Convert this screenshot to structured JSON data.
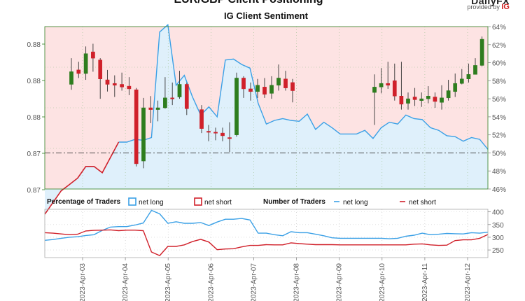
{
  "header": {
    "title": "EUR/GBP Client Positioning",
    "subtitle": "IG Client Sentiment",
    "brand": "DailyFX",
    "brand_provided": "provided by",
    "brand_ig": "IG"
  },
  "legend": {
    "pct_title": "Percentage of Traders",
    "net_long": "net long",
    "net_short": "net short",
    "num_title": "Number of Traders",
    "num_net_long": "net long",
    "num_net_short": "net short"
  },
  "colors": {
    "long": "#3aa0e6",
    "short": "#d0202a",
    "up_candle": "#2e7d1e",
    "down_candle": "#d0202a",
    "bg_short": "#fde3e3",
    "bg_long": "#dff0fb"
  },
  "chart_data": [
    {
      "type": "candlestick",
      "title": "IG Client Sentiment",
      "left_axis_ticks": [
        "0.88",
        "0.88",
        "0.88",
        "0.87",
        "0.87"
      ],
      "right_axis_ticks": [
        "64%",
        "62%",
        "60%",
        "58%",
        "56%",
        "54%",
        "52%",
        "50%",
        "48%",
        "46%"
      ],
      "ylim_right": [
        46,
        64
      ],
      "reference_line": 50,
      "net_long_percent": [
        43.2,
        44.5,
        45.8,
        46.5,
        47.2,
        48.5,
        48.5,
        47.8,
        49.5,
        51.2,
        51.2,
        51.5,
        51.4,
        51.7,
        63.4,
        64.2,
        57.5,
        58.6,
        56.2,
        54.2,
        55.1,
        54.0,
        60.3,
        60.4,
        59.8,
        59.4,
        55.5,
        53.2,
        53.6,
        53.8,
        53.6,
        53.5,
        54.3,
        52.6,
        53.4,
        52.8,
        52.1,
        52.1,
        52.1,
        52.5,
        51.6,
        52.8,
        53.4,
        53.2,
        54.2,
        53.8,
        53.7,
        52.8,
        52.5,
        51.9,
        51.8,
        51.3,
        51.7,
        51.5,
        50.4
      ],
      "candles": [
        {
          "o": 57.6,
          "c": 59.0,
          "h": 60.5,
          "l": 57.0
        },
        {
          "o": 59.2,
          "c": 58.8,
          "h": 60.1,
          "l": 58.3
        },
        {
          "o": 58.8,
          "c": 61.0,
          "h": 61.8,
          "l": 58.1
        },
        {
          "o": 61.2,
          "c": 60.5,
          "h": 62.1,
          "l": 59.0
        },
        {
          "o": 60.3,
          "c": 58.2,
          "h": 60.5,
          "l": 56.0
        },
        {
          "o": 58.1,
          "c": 57.6,
          "h": 59.2,
          "l": 56.8
        },
        {
          "o": 57.7,
          "c": 57.5,
          "h": 58.6,
          "l": 56.2
        },
        {
          "o": 57.6,
          "c": 57.3,
          "h": 58.9,
          "l": 56.9
        },
        {
          "o": 57.4,
          "c": 57.1,
          "h": 58.4,
          "l": 56.4
        },
        {
          "o": 57.0,
          "c": 48.8,
          "h": 57.2,
          "l": 48.5
        },
        {
          "o": 49.1,
          "c": 55.0,
          "h": 56.1,
          "l": 48.3
        },
        {
          "o": 55.0,
          "c": 54.8,
          "h": 56.3,
          "l": 53.3
        },
        {
          "o": 54.8,
          "c": 55.0,
          "h": 55.8,
          "l": 53.5
        },
        {
          "o": 55.0,
          "c": 56.1,
          "h": 58.4,
          "l": 54.9
        },
        {
          "o": 56.1,
          "c": 56.0,
          "h": 57.8,
          "l": 55.3
        },
        {
          "o": 56.2,
          "c": 57.6,
          "h": 59.1,
          "l": 56.0
        },
        {
          "o": 57.6,
          "c": 54.9,
          "h": 57.8,
          "l": 54.2
        },
        {
          "o": 54.8,
          "c": 52.7,
          "h": 55.3,
          "l": 52.2
        },
        {
          "o": 52.4,
          "c": 52.3,
          "h": 53.1,
          "l": 51.3
        },
        {
          "o": 52.3,
          "c": 52.2,
          "h": 52.8,
          "l": 51.4
        },
        {
          "o": 52.2,
          "c": 51.9,
          "h": 52.8,
          "l": 51.3
        },
        {
          "o": 51.7,
          "c": 51.6,
          "h": 53.4,
          "l": 50.1
        },
        {
          "o": 52.0,
          "c": 58.3,
          "h": 58.9,
          "l": 51.8
        },
        {
          "o": 58.3,
          "c": 57.1,
          "h": 58.5,
          "l": 56.1
        },
        {
          "o": 57.1,
          "c": 56.8,
          "h": 57.8,
          "l": 55.8
        },
        {
          "o": 56.8,
          "c": 57.5,
          "h": 58.2,
          "l": 56.1
        },
        {
          "o": 57.3,
          "c": 56.5,
          "h": 58.3,
          "l": 56.1
        },
        {
          "o": 56.6,
          "c": 57.5,
          "h": 58.5,
          "l": 56.0
        },
        {
          "o": 57.5,
          "c": 58.3,
          "h": 59.8,
          "l": 56.9
        },
        {
          "o": 58.2,
          "c": 57.2,
          "h": 59.1,
          "l": 56.9
        },
        {
          "o": 57.8,
          "c": 56.9,
          "h": 58.2,
          "l": 55.6
        },
        {
          "o": 56.7,
          "c": 57.3,
          "h": 58.7,
          "l": 53.1
        },
        {
          "o": 57.3,
          "c": 57.7,
          "h": 59.4,
          "l": 56.6
        },
        {
          "o": 57.7,
          "c": 57.5,
          "h": 60.1,
          "l": 57.1
        },
        {
          "o": 58.0,
          "c": 56.3,
          "h": 59.9,
          "l": 55.8
        },
        {
          "o": 56.3,
          "c": 55.4,
          "h": 60.1,
          "l": 54.8
        },
        {
          "o": 55.5,
          "c": 56.0,
          "h": 56.7,
          "l": 54.8
        },
        {
          "o": 56.2,
          "c": 55.9,
          "h": 57.2,
          "l": 55.2
        },
        {
          "o": 55.8,
          "c": 56.0,
          "h": 56.7,
          "l": 55.1
        },
        {
          "o": 56.0,
          "c": 56.3,
          "h": 57.4,
          "l": 55.5
        },
        {
          "o": 56.2,
          "c": 55.7,
          "h": 56.7,
          "l": 55.0
        },
        {
          "o": 55.6,
          "c": 56.1,
          "h": 57.5,
          "l": 54.8
        },
        {
          "o": 56.1,
          "c": 56.9,
          "h": 58.1,
          "l": 55.8
        },
        {
          "o": 56.8,
          "c": 57.7,
          "h": 58.8,
          "l": 56.2
        },
        {
          "o": 57.7,
          "c": 58.2,
          "h": 59.3,
          "l": 57.6
        },
        {
          "o": 58.2,
          "c": 58.7,
          "h": 59.9,
          "l": 57.8
        },
        {
          "o": 58.7,
          "c": 59.7,
          "h": 60.5,
          "l": 58.7
        },
        {
          "o": 59.7,
          "c": 62.6,
          "h": 62.9,
          "l": 59.6
        }
      ]
    },
    {
      "type": "line",
      "title": "Number of Traders",
      "y_ticks": [
        "400",
        "350",
        "300",
        "250"
      ],
      "ylim": [
        220,
        410
      ],
      "x_labels": [
        "2023-Apr-03",
        "2023-Apr-04",
        "2023-Apr-05",
        "2023-Apr-06",
        "2023-Apr-07",
        "2023-Apr-08",
        "2023-Apr-09",
        "2023-Apr-10",
        "2023-Apr-11",
        "2023-Apr-12"
      ],
      "series": [
        {
          "name": "net long",
          "values": [
            288,
            291,
            296,
            300,
            302,
            307,
            310,
            327,
            340,
            342,
            342,
            348,
            356,
            406,
            392,
            355,
            361,
            355,
            355,
            358,
            346,
            360,
            371,
            371,
            374,
            368,
            316,
            316,
            310,
            306,
            322,
            318,
            318,
            312,
            306,
            298,
            296,
            296,
            296,
            296,
            296,
            296,
            294,
            296,
            304,
            308,
            316,
            310,
            312,
            315,
            314,
            313,
            318,
            316,
            320
          ]
        },
        {
          "name": "net short",
          "values": [
            318,
            316,
            313,
            310,
            312,
            325,
            327,
            328,
            329,
            326,
            328,
            328,
            326,
            242,
            228,
            264,
            264,
            270,
            283,
            292,
            281,
            251,
            254,
            255,
            262,
            268,
            268,
            271,
            270,
            270,
            278,
            275,
            273,
            271,
            271,
            271,
            270,
            270,
            270,
            270,
            270,
            270,
            270,
            270,
            270,
            273,
            274,
            270,
            268,
            269,
            287,
            290,
            290,
            296,
            311
          ]
        }
      ]
    }
  ]
}
